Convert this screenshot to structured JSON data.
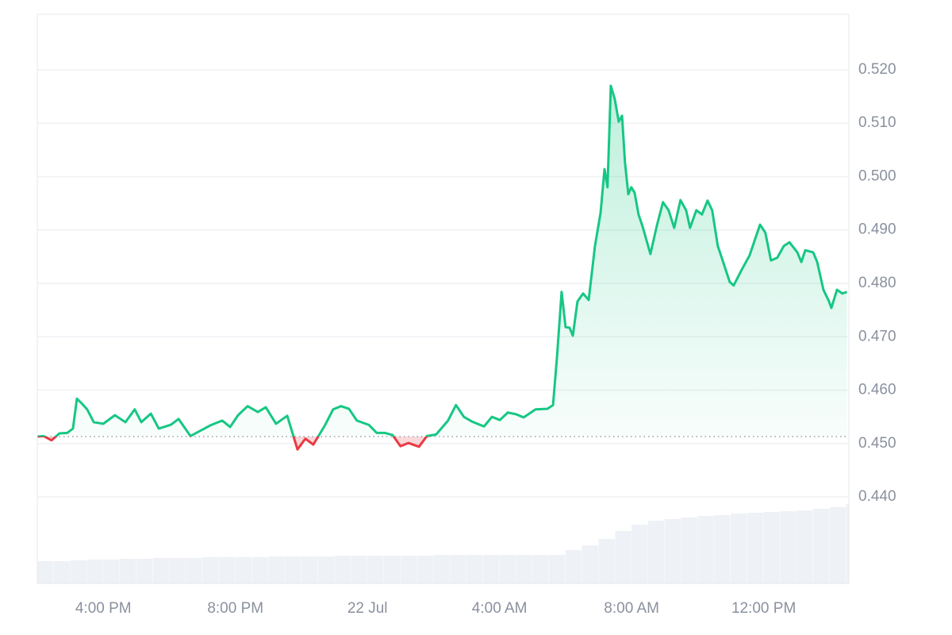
{
  "chart_data": {
    "type": "line",
    "x": [
      14.0,
      14.19,
      14.43,
      14.67,
      14.91,
      15.08,
      15.2,
      15.35,
      15.51,
      15.71,
      16.0,
      16.35,
      16.67,
      16.95,
      17.15,
      17.44,
      17.68,
      18.04,
      18.28,
      18.64,
      19.0,
      19.24,
      19.6,
      19.84,
      20.08,
      20.37,
      20.68,
      20.92,
      21.23,
      21.57,
      21.88,
      22.12,
      22.36,
      22.72,
      22.96,
      23.2,
      23.44,
      23.68,
      24.04,
      24.28,
      24.52,
      24.76,
      25.0,
      25.24,
      25.56,
      25.8,
      26.08,
      26.44,
      26.68,
      26.92,
      27.17,
      27.53,
      27.77,
      28.01,
      28.25,
      28.49,
      28.73,
      29.09,
      29.45,
      29.62,
      29.74,
      29.88,
      30.0,
      30.12,
      30.22,
      30.36,
      30.53,
      30.7,
      30.89,
      31.06,
      31.18,
      31.27,
      31.37,
      31.49,
      31.61,
      31.71,
      31.8,
      31.9,
      31.99,
      32.09,
      32.21,
      32.33,
      32.57,
      32.76,
      32.95,
      33.12,
      33.29,
      33.48,
      33.65,
      33.77,
      33.96,
      34.13,
      34.3,
      34.44,
      34.61,
      34.73,
      34.97,
      35.09,
      35.33,
      35.57,
      35.89,
      36.05,
      36.22,
      36.41,
      36.61,
      36.78,
      37.02,
      37.14,
      37.26,
      37.5,
      37.62,
      37.81,
      37.98,
      38.05,
      38.22,
      38.38,
      38.52
    ],
    "series": [
      {
        "color": "#16c784",
        "below_color": "#ea3943",
        "values": [
          0.4513,
          0.4514,
          0.4506,
          0.4519,
          0.452,
          0.4528,
          0.4584,
          0.4575,
          0.4564,
          0.454,
          0.4537,
          0.4553,
          0.454,
          0.4564,
          0.454,
          0.4556,
          0.4528,
          0.4535,
          0.4546,
          0.4514,
          0.4526,
          0.4534,
          0.4543,
          0.4531,
          0.4553,
          0.457,
          0.4559,
          0.4568,
          0.4537,
          0.4552,
          0.4489,
          0.4509,
          0.4498,
          0.4535,
          0.4564,
          0.457,
          0.4565,
          0.4543,
          0.4535,
          0.452,
          0.452,
          0.4516,
          0.4495,
          0.4501,
          0.4494,
          0.4514,
          0.4517,
          0.4543,
          0.4572,
          0.455,
          0.4541,
          0.4532,
          0.455,
          0.4544,
          0.4558,
          0.4555,
          0.4549,
          0.4564,
          0.4565,
          0.4572,
          0.4662,
          0.4784,
          0.4718,
          0.4717,
          0.4702,
          0.4766,
          0.4781,
          0.4769,
          0.487,
          0.4932,
          0.5014,
          0.498,
          0.517,
          0.5145,
          0.5103,
          0.5114,
          0.5026,
          0.4967,
          0.498,
          0.497,
          0.4929,
          0.4907,
          0.4855,
          0.4907,
          0.4952,
          0.4937,
          0.4904,
          0.4956,
          0.4937,
          0.4904,
          0.4937,
          0.4929,
          0.4955,
          0.4937,
          0.487,
          0.4848,
          0.4803,
          0.4796,
          0.4825,
          0.4852,
          0.491,
          0.4895,
          0.4843,
          0.4848,
          0.487,
          0.4877,
          0.4858,
          0.484,
          0.4862,
          0.4858,
          0.484,
          0.4788,
          0.4766,
          0.4754,
          0.4788,
          0.4781,
          0.4784
        ]
      }
    ],
    "reference_value": 0.4513,
    "volume": {
      "color": "#eef1f5",
      "x": [
        14,
        14.5,
        15,
        15.5,
        16,
        16.5,
        17,
        17.5,
        18,
        18.5,
        19,
        19.5,
        20,
        20.5,
        21,
        21.5,
        22,
        22.5,
        23,
        23.5,
        24,
        24.5,
        25,
        25.5,
        26,
        26.5,
        27,
        27.5,
        28,
        28.5,
        29,
        29.5,
        30,
        30.5,
        31,
        31.5,
        32,
        32.5,
        33,
        33.5,
        34,
        34.5,
        35,
        35.5,
        36,
        36.5,
        37,
        37.5,
        38,
        38.5
      ],
      "values": [
        28,
        28,
        29,
        30,
        30,
        31,
        31,
        32,
        32,
        32,
        33,
        33,
        33,
        33,
        34,
        34,
        34,
        34,
        35,
        35,
        35,
        35,
        35,
        35,
        36,
        36,
        36,
        36,
        36,
        36,
        36,
        36,
        42,
        48,
        56,
        66,
        74,
        79,
        81,
        83,
        85,
        86,
        88,
        89,
        90,
        91,
        92,
        94,
        96,
        100
      ]
    },
    "xlim": [
      14,
      38.58
    ],
    "ylim": [
      0.4238,
      0.5304
    ],
    "xticks": [
      {
        "value": 16,
        "label": "4:00 PM"
      },
      {
        "value": 20,
        "label": "8:00 PM"
      },
      {
        "value": 24,
        "label": "22 Jul"
      },
      {
        "value": 28,
        "label": "4:00 AM"
      },
      {
        "value": 32,
        "label": "8:00 AM"
      },
      {
        "value": 36,
        "label": "12:00 PM"
      }
    ],
    "yticks": [
      {
        "value": 0.44,
        "label": "0.440"
      },
      {
        "value": 0.45,
        "label": "0.450"
      },
      {
        "value": 0.46,
        "label": "0.460"
      },
      {
        "value": 0.47,
        "label": "0.470"
      },
      {
        "value": 0.48,
        "label": "0.480"
      },
      {
        "value": 0.49,
        "label": "0.490"
      },
      {
        "value": 0.5,
        "label": "0.500"
      },
      {
        "value": 0.51,
        "label": "0.510"
      },
      {
        "value": 0.52,
        "label": "0.520"
      }
    ],
    "grid": true
  }
}
